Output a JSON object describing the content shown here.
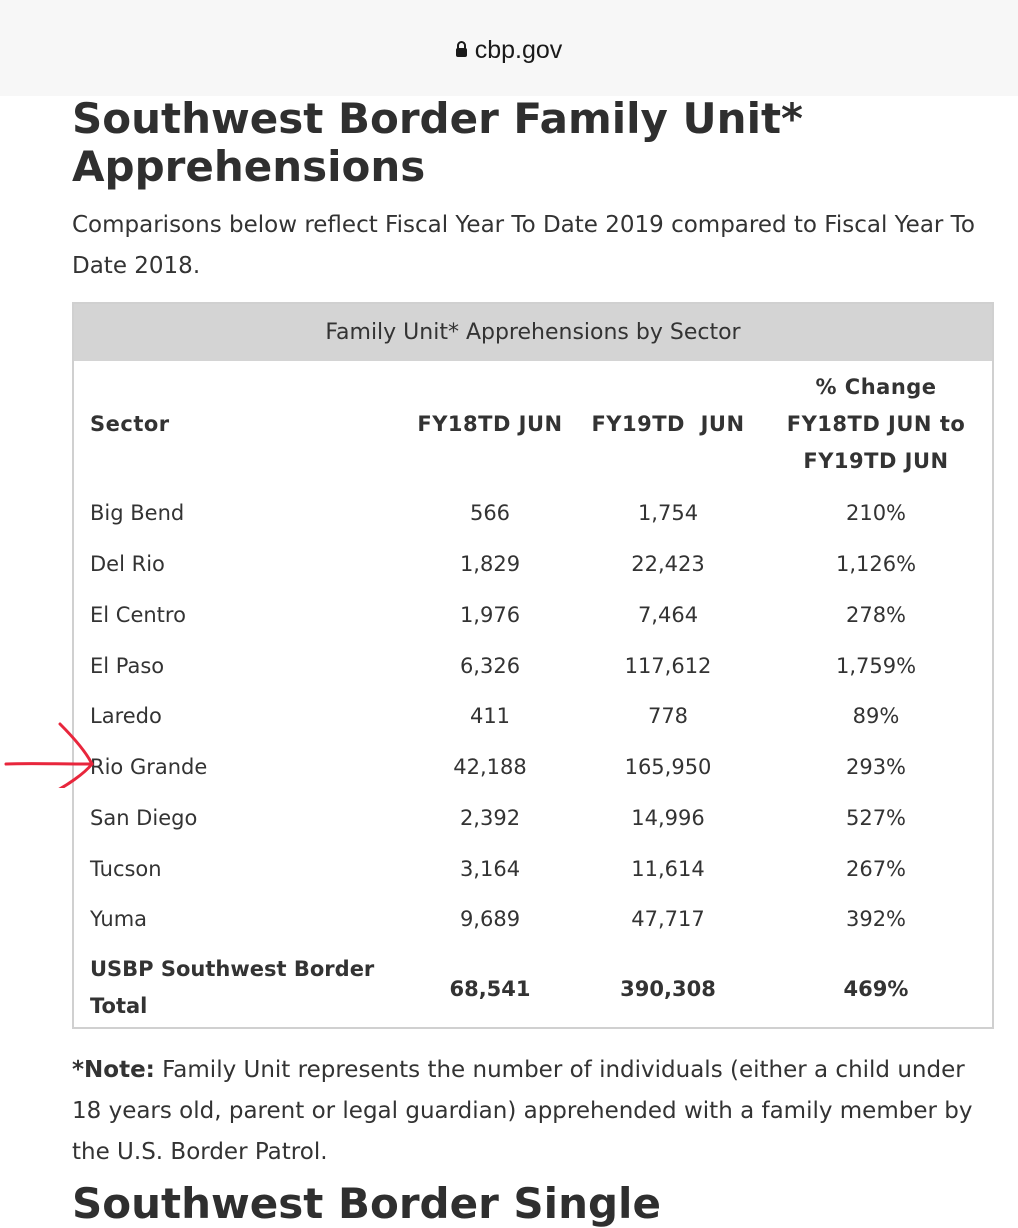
{
  "browser": {
    "domain": "cbp.gov"
  },
  "page": {
    "title": "Southwest Border Family Unit* Apprehensions",
    "intro": "Comparisons below reflect Fiscal Year To Date 2019 compared to Fiscal Year To Date 2018.",
    "next_heading": "Southwest Border Single"
  },
  "table": {
    "caption": "Family Unit* Apprehensions by Sector",
    "headers": {
      "sector": "Sector",
      "fy18": "FY18TD JUN",
      "fy19": "FY19TD  JUN",
      "change_line1": "% Change",
      "change_line2": "FY18TD JUN to",
      "change_line3": "FY19TD JUN"
    },
    "rows": [
      {
        "sector": "Big Bend",
        "fy18": "566",
        "fy19": "1,754",
        "change": "210%"
      },
      {
        "sector": "Del Rio",
        "fy18": "1,829",
        "fy19": "22,423",
        "change": "1,126%"
      },
      {
        "sector": "El Centro",
        "fy18": "1,976",
        "fy19": "7,464",
        "change": "278%"
      },
      {
        "sector": "El Paso",
        "fy18": "6,326",
        "fy19": "117,612",
        "change": "1,759%"
      },
      {
        "sector": "Laredo",
        "fy18": "411",
        "fy19": "778",
        "change": "89%"
      },
      {
        "sector": "Rio Grande",
        "fy18": "42,188",
        "fy19": "165,950",
        "change": "293%"
      },
      {
        "sector": "San Diego",
        "fy18": "2,392",
        "fy19": "14,996",
        "change": "527%"
      },
      {
        "sector": "Tucson",
        "fy18": "3,164",
        "fy19": "11,614",
        "change": "267%"
      },
      {
        "sector": "Yuma",
        "fy18": "9,689",
        "fy19": "47,717",
        "change": "392%"
      }
    ],
    "total": {
      "label_line1": "USBP Southwest Border",
      "label_line2": "Total",
      "fy18": "68,541",
      "fy19": "390,308",
      "change": "469%"
    }
  },
  "note": {
    "label": "*Note:",
    "text": " Family Unit represents the number of individuals (either a child under 18 years old, parent or legal guardian) apprehended with a family member by the U.S. Border Patrol."
  },
  "annotation": {
    "arrow_color": "#e8263c",
    "arrow_target": "Rio Grande"
  }
}
